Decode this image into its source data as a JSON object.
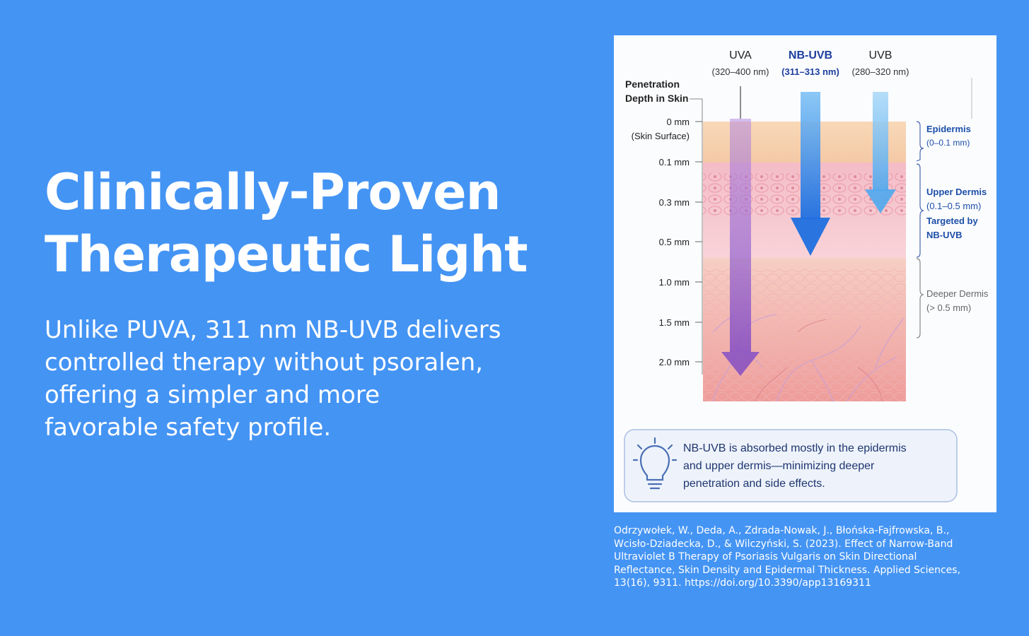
{
  "headline": {
    "line1": "Clinically-Proven",
    "line2": "Therapeutic Light"
  },
  "subtext": {
    "line1": "Unlike PUVA, 311 nm NB-UVB delivers",
    "line2": "controlled therapy without psoralen,",
    "line3": "offering a simpler and more",
    "line4": "favorable safety profile."
  },
  "diagram": {
    "axis_title_line1": "Penetration",
    "axis_title_line2": "Depth in Skin",
    "depth_ticks": [
      {
        "label": "0 mm",
        "sub": "(Skin Surface)"
      },
      {
        "label": "0.1 mm"
      },
      {
        "label": "0.3 mm"
      },
      {
        "label": "0.5 mm"
      },
      {
        "label": "1.0 mm"
      },
      {
        "label": "1.5 mm"
      },
      {
        "label": "2.0 mm"
      }
    ],
    "wavebands": [
      {
        "name": "UVA",
        "range": "(320–400 nm)",
        "color": "#8b4fc8"
      },
      {
        "name": "NB-UVB",
        "range": "(311–313 nm)",
        "color": "#1f6fe0"
      },
      {
        "name": "UVB",
        "range": "(280–320 nm)",
        "color": "#4fa8ee"
      }
    ],
    "layers": [
      {
        "line1": "Epidermis",
        "line2": "(0–0.1 mm)"
      },
      {
        "line1": "Upper Dermis",
        "line2": "(0.1–0.5 mm)",
        "line3": "Targeted by",
        "line4": "NB-UVB"
      },
      {
        "line1": "Deeper Dermis",
        "line2": "(> 0.5 mm)"
      }
    ],
    "callout": {
      "icon": "lightbulb-icon",
      "line1": "NB-UVB is absorbed mostly in the epidermis",
      "line2": "and upper dermis—minimizing deeper",
      "line3": "penetration and side effects."
    }
  },
  "citation": {
    "line1": "Odrzywołek, W., Deda, A., Zdrada-Nowak, J., Błońska-Fajfrowska, B.,",
    "line2": "Wcisło-Dziadecka, D., & Wilczyński, S. (2023). Effect of Narrow-Band",
    "line3": "Ultraviolet B Therapy of Psoriasis Vulgaris on Skin Directional",
    "line4": "Reflectance, Skin Density and Epidermal Thickness. Applied Sciences,",
    "line5": "13(16), 9311. https://doi.org/10.3390/app13169311"
  },
  "colors": {
    "background": "#4494f4",
    "layer_label": "#1d4fa8"
  }
}
